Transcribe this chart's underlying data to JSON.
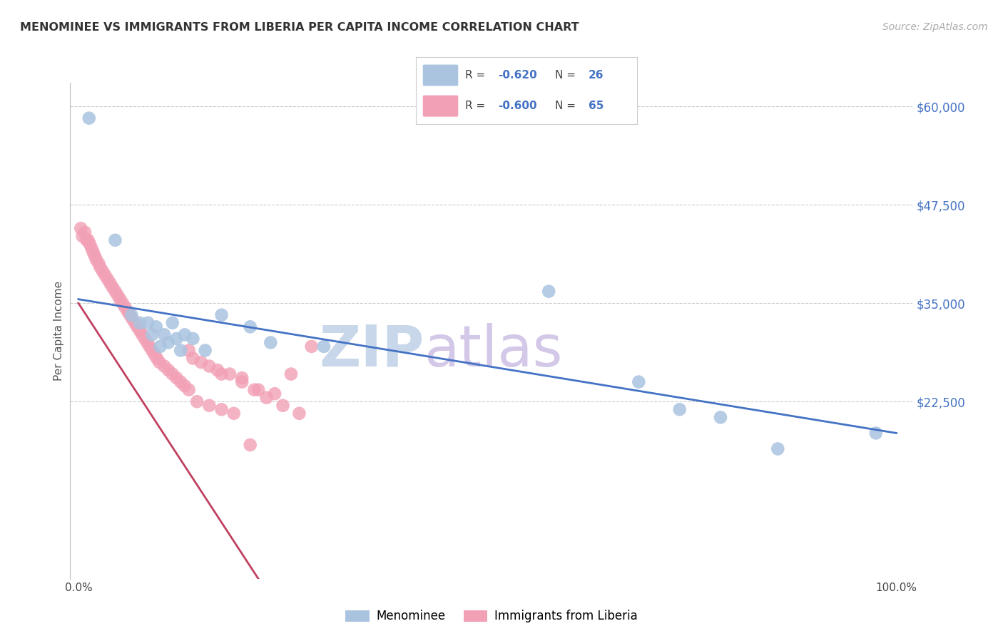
{
  "title": "MENOMINEE VS IMMIGRANTS FROM LIBERIA PER CAPITA INCOME CORRELATION CHART",
  "source": "Source: ZipAtlas.com",
  "ylabel": "Per Capita Income",
  "ylim": [
    0,
    63000
  ],
  "xlim": [
    -0.01,
    1.02
  ],
  "menominee_color": "#aac4e0",
  "liberia_color": "#f2a0b5",
  "trend_menominee_color": "#4472c4",
  "trend_liberia_color": "#c04060",
  "ytick_vals": [
    22500,
    35000,
    47500,
    60000
  ],
  "ytick_labels": [
    "$22,500",
    "$35,000",
    "$47,500",
    "$60,000"
  ],
  "menominee_x": [
    0.013,
    0.045,
    0.065,
    0.075,
    0.085,
    0.09,
    0.095,
    0.1,
    0.105,
    0.11,
    0.115,
    0.12,
    0.125,
    0.13,
    0.14,
    0.155,
    0.175,
    0.21,
    0.235,
    0.3,
    0.575,
    0.685,
    0.735,
    0.785,
    0.855,
    0.975
  ],
  "menominee_y": [
    58500,
    43000,
    33500,
    32500,
    32500,
    31000,
    32000,
    29500,
    31000,
    30000,
    32500,
    30500,
    29000,
    31000,
    30500,
    29000,
    33500,
    32000,
    30000,
    29500,
    36500,
    25000,
    21500,
    20500,
    16500,
    18500
  ],
  "liberia_x": [
    0.003,
    0.005,
    0.008,
    0.01,
    0.012,
    0.014,
    0.016,
    0.018,
    0.02,
    0.022,
    0.025,
    0.027,
    0.03,
    0.033,
    0.036,
    0.039,
    0.042,
    0.045,
    0.048,
    0.051,
    0.054,
    0.057,
    0.06,
    0.063,
    0.066,
    0.069,
    0.072,
    0.075,
    0.078,
    0.081,
    0.084,
    0.087,
    0.09,
    0.093,
    0.096,
    0.099,
    0.105,
    0.11,
    0.115,
    0.12,
    0.125,
    0.13,
    0.135,
    0.14,
    0.15,
    0.16,
    0.17,
    0.185,
    0.2,
    0.22,
    0.24,
    0.26,
    0.285,
    0.2,
    0.215,
    0.23,
    0.25,
    0.27,
    0.135,
    0.145,
    0.16,
    0.175,
    0.19,
    0.21,
    0.175
  ],
  "liberia_y": [
    44500,
    43500,
    44000,
    43000,
    43000,
    42500,
    42000,
    41500,
    41000,
    40500,
    40000,
    39500,
    39000,
    38500,
    38000,
    37500,
    37000,
    36500,
    36000,
    35500,
    35000,
    34500,
    34000,
    33500,
    33000,
    32500,
    32000,
    31500,
    31000,
    30500,
    30000,
    29500,
    29000,
    28500,
    28000,
    27500,
    27000,
    26500,
    26000,
    25500,
    25000,
    24500,
    24000,
    28000,
    27500,
    27000,
    26500,
    26000,
    25500,
    24000,
    23500,
    26000,
    29500,
    25000,
    24000,
    23000,
    22000,
    21000,
    29000,
    22500,
    22000,
    21500,
    21000,
    17000,
    26000
  ],
  "trend_men_x0": 0.0,
  "trend_men_x1": 1.0,
  "trend_men_y0": 35500,
  "trend_men_y1": 18500,
  "trend_lib_x0": 0.0,
  "trend_lib_x1": 0.22,
  "trend_lib_y0": 35000,
  "trend_lib_y1": 0,
  "watermark_zip": "ZIP",
  "watermark_atlas": "atlas",
  "watermark_color": "#c8d8ea",
  "background_color": "#ffffff"
}
